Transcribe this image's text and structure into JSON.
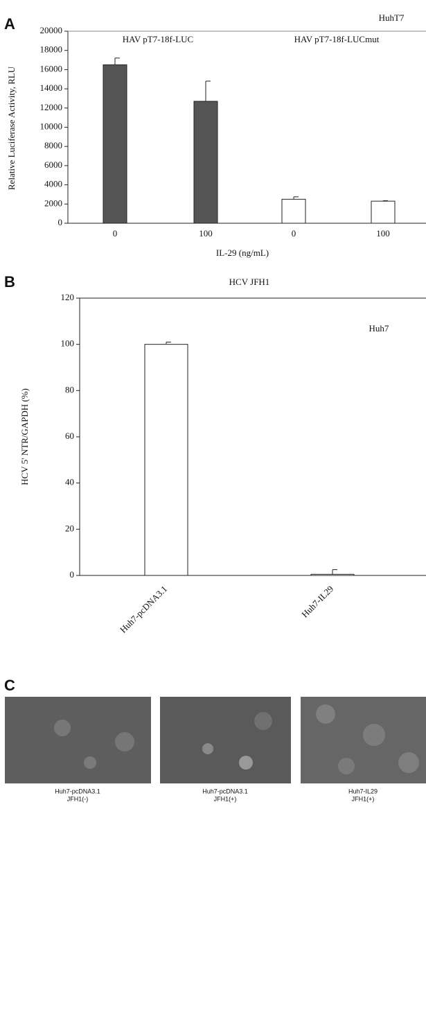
{
  "chart_data": [
    {
      "type": "bar",
      "panel_label": "A",
      "annotations": [
        "HuhT7",
        "HAV pT7-18f-LUC",
        "HAV pT7-18f-LUCmut"
      ],
      "y_label": "Relative Luciferase Activity, RLU",
      "x_label": "IL-29 (ng/mL)",
      "categories": [
        "0",
        "100",
        "0",
        "100"
      ],
      "values": [
        16500,
        12700,
        2500,
        2300
      ],
      "errors": [
        700,
        2100,
        250,
        50
      ],
      "colors": [
        "#555555",
        "#555555",
        "#ffffff",
        "#ffffff"
      ],
      "ylim": [
        0,
        20000
      ],
      "yticks": [
        0,
        2000,
        4000,
        6000,
        8000,
        10000,
        12000,
        14000,
        16000,
        18000,
        20000
      ]
    },
    {
      "type": "bar",
      "panel_label": "B",
      "title": "HCV JFH1",
      "annotations": [
        "Huh7"
      ],
      "y_label": "HCV 5' NTR/GAPDH (%)",
      "categories": [
        "Huh7-pcDNA3.1",
        "Huh7-IL29"
      ],
      "values": [
        100,
        0.5
      ],
      "errors": [
        1,
        2
      ],
      "colors": [
        "#ffffff",
        "#ffffff"
      ],
      "ylim": [
        0,
        120
      ],
      "yticks": [
        0,
        20,
        40,
        60,
        80,
        100,
        120
      ]
    }
  ],
  "panel_c": {
    "label": "C",
    "images": [
      {
        "caption": [
          "Huh7-pcDNA3.1",
          "JFH1(-)"
        ]
      },
      {
        "caption": [
          "Huh7-pcDNA3.1",
          "JFH1(+)"
        ]
      },
      {
        "caption": [
          "Huh7-IL29",
          "JFH1(+)"
        ]
      }
    ]
  }
}
